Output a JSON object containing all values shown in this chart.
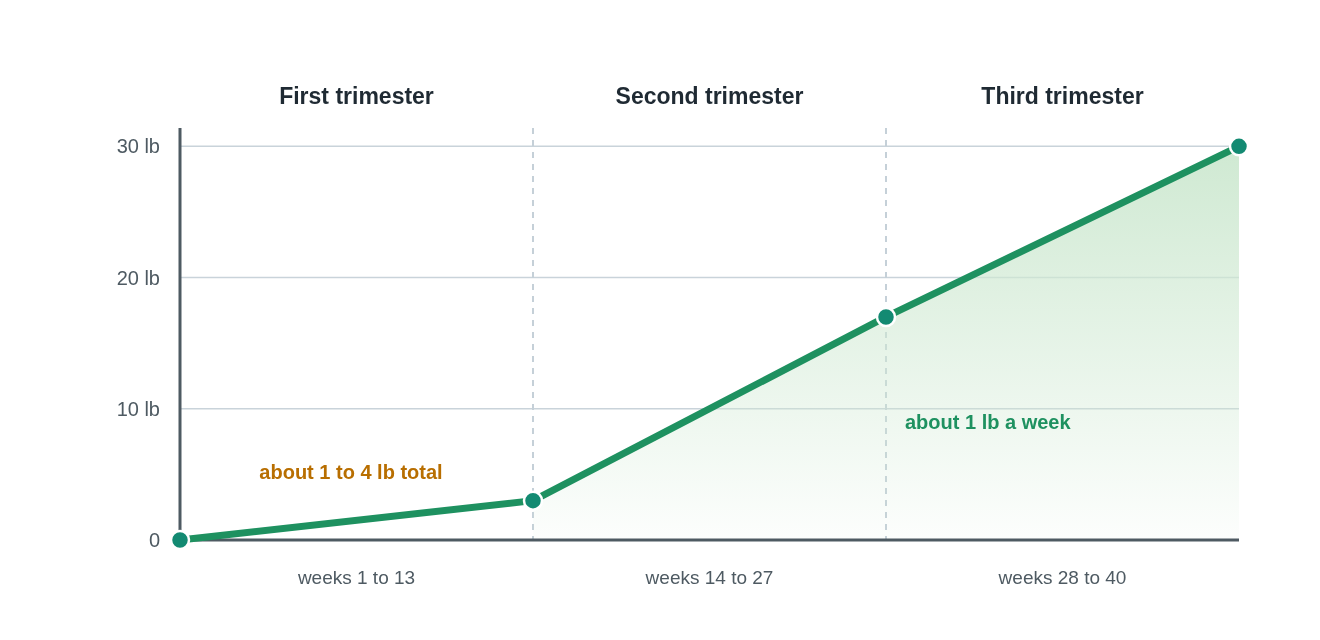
{
  "chart_data": {
    "type": "line",
    "ylim": [
      0,
      31.4
    ],
    "categories": [
      null,
      "weeks 1 to 13",
      null,
      "weeks 14 to 27",
      null,
      "weeks 28 to 40",
      null
    ],
    "yticks": [
      0,
      {
        "value": 10,
        "label": "10 lb"
      },
      {
        "value": 20,
        "label": "20 lb"
      },
      {
        "value": 30,
        "label": "30 lb"
      }
    ],
    "grid": true,
    "series": [
      {
        "type": "area",
        "color": "#cfe9d2",
        "values": [
          null,
          null,
          3,
          null,
          17,
          null,
          30
        ]
      },
      {
        "color": "#1e9160",
        "values": [
          0,
          null,
          3,
          null,
          null,
          null,
          null
        ],
        "line_style": "solid"
      },
      {
        "type": "scatter",
        "color": "#138a72",
        "values": [
          0,
          null,
          3,
          null,
          17,
          null,
          30
        ],
        "marker": "circle"
      }
    ],
    "annotations": [
      "First trimester",
      "Second trimester",
      "Third trimester",
      "about 1 to 4 lb total",
      "about 1 lb a week"
    ]
  }
}
